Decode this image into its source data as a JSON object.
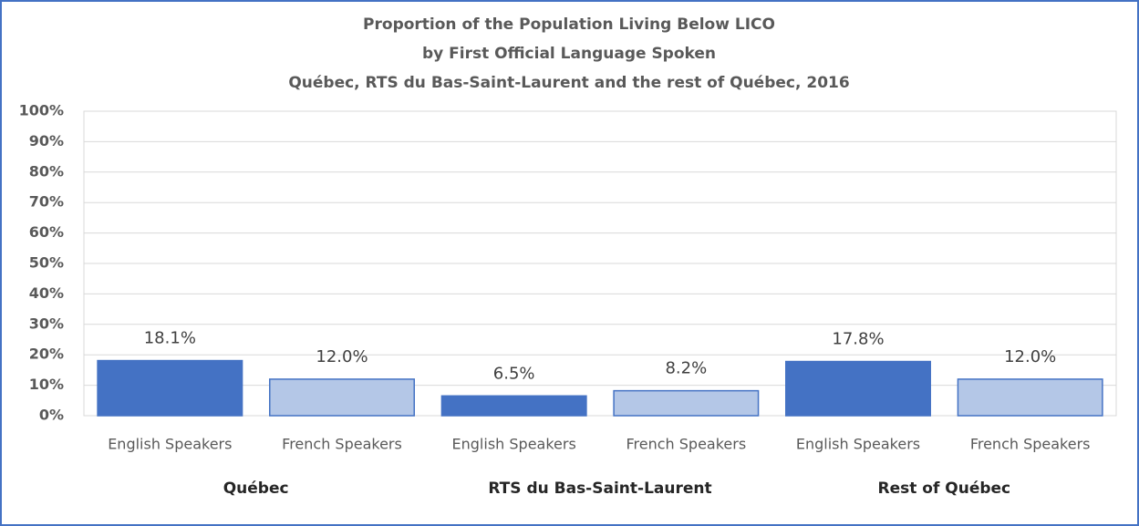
{
  "chart_data": {
    "type": "bar",
    "title": [
      "Proportion of the Population Living Below LICO",
      "by First Official Language Spoken",
      "Québec, RTS du Bas-Saint-Laurent and the rest of Québec, 2016"
    ],
    "categories": [
      "English Speakers",
      "French Speakers",
      "English Speakers",
      "French Speakers",
      "English Speakers",
      "French Speakers"
    ],
    "groups": [
      "Québec",
      "RTS du Bas-Saint-Laurent",
      "Rest of Québec"
    ],
    "values": [
      18.1,
      12.0,
      6.5,
      8.2,
      17.8,
      12.0
    ],
    "value_labels": [
      "18.1%",
      "12.0%",
      "6.5%",
      "8.2%",
      "17.8%",
      "12.0%"
    ],
    "colors": [
      "#4472c4",
      "#b4c7e7",
      "#4472c4",
      "#b4c7e7",
      "#4472c4",
      "#b4c7e7"
    ],
    "ylim": [
      0,
      100
    ],
    "yticks": [
      {
        "value": 0,
        "label": "0%"
      },
      {
        "value": 10,
        "label": "10%"
      },
      {
        "value": 20,
        "label": "20%"
      },
      {
        "value": 30,
        "label": "30%"
      },
      {
        "value": 40,
        "label": "40%"
      },
      {
        "value": 50,
        "label": "50%"
      },
      {
        "value": 60,
        "label": "60%"
      },
      {
        "value": 70,
        "label": "70%"
      },
      {
        "value": 80,
        "label": "80%"
      },
      {
        "value": 90,
        "label": "90%"
      },
      {
        "value": 100,
        "label": "100%"
      }
    ],
    "grid": true
  }
}
